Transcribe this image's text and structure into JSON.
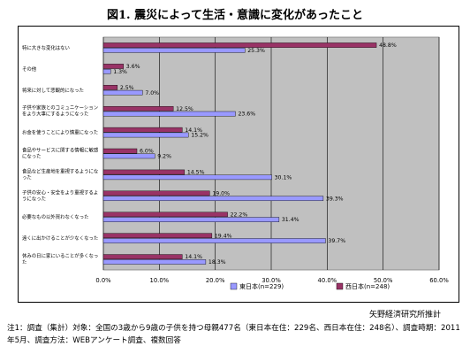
{
  "title": "図1. 震災によって生活・意識に変化があったこと",
  "source": "矢野経済研究所推計",
  "note": "注1：調査（集計）対象：全国の3歳から9歳の子供を持つ母親477名（東日本在住：229名、西日本在住：248名）、調査時期：2011年5月、調査方法：WEBアンケート調査、複数回答",
  "chart_data": {
    "type": "bar",
    "orientation": "horizontal",
    "categories": [
      "特に大きな変化はない",
      "その他",
      "将来に対して悲観的になった",
      "子供や家族とのコミュニケーションをより大事にするようになった",
      "お金を使うことにより慎重になった",
      "食品やサービスに関する情報に敏感になった",
      "食品など生産地を重視するようになった",
      "子供の安心・安全をより重視するようになった",
      "必要なもの以外買わなくなった",
      "遠くに出かけることが少なくなった",
      "休みの日に家にいることが多くなった"
    ],
    "series": [
      {
        "name": "東日本(n=229)",
        "color": "#9999ff",
        "values": [
          25.3,
          1.3,
          7.0,
          23.6,
          15.2,
          9.2,
          30.1,
          39.3,
          31.4,
          39.7,
          18.3
        ]
      },
      {
        "name": "西日本(n=248)",
        "color": "#993366",
        "values": [
          48.8,
          3.6,
          2.5,
          12.5,
          14.1,
          6.0,
          14.5,
          19.0,
          22.2,
          19.4,
          14.1
        ]
      }
    ],
    "xlim": [
      0,
      60
    ],
    "ticks": [
      "0.0%",
      "10.0%",
      "20.0%",
      "30.0%",
      "40.0%",
      "50.0%",
      "60.0%"
    ],
    "plot_background": "#c0c0c0",
    "grid": true,
    "legend_position": "bottom-right"
  }
}
